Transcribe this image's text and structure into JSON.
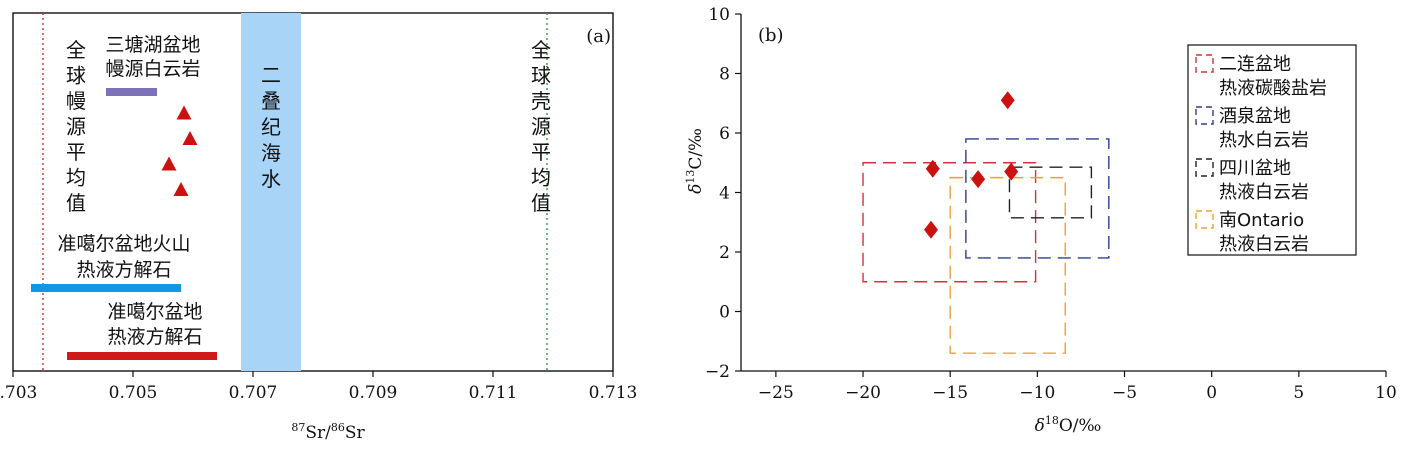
{
  "chart_data": [
    {
      "panel": "(a)",
      "type": "scatter",
      "xlabel_sup": "87",
      "xlabel_mid": "Sr/",
      "xlabel_sup2": "86",
      "xlabel_end": "Sr",
      "xlim": [
        0.703,
        0.713
      ],
      "xticks": [
        "0.703",
        "0.705",
        "0.707",
        "0.709",
        "0.711",
        "0.713"
      ],
      "reference_lines": [
        {
          "x": 0.7035,
          "color": "#d81e1e",
          "chars": [
            "全",
            "球",
            "幔",
            "源",
            "平",
            "均",
            "值"
          ]
        },
        {
          "x": 0.7119,
          "color": "#1e8f3a",
          "chars": [
            "全",
            "球",
            "壳",
            "源",
            "平",
            "均",
            "值"
          ]
        }
      ],
      "seawater_band": {
        "x0": 0.7068,
        "x1": 0.7078,
        "color": "#a8d4f8",
        "chars": [
          "二",
          "叠",
          "纪",
          "海",
          "水"
        ]
      },
      "points": [
        {
          "x": 0.70585,
          "level": 1
        },
        {
          "x": 0.70595,
          "level": 2
        },
        {
          "x": 0.7056,
          "level": 3
        },
        {
          "x": 0.7058,
          "level": 4
        }
      ],
      "ranges": [
        {
          "label1": "三塘湖盆地",
          "label2": "幔源白云岩",
          "x0": 0.70455,
          "x1": 0.7054,
          "color": "#7b72b8"
        },
        {
          "label1": "准噶尔盆地火山",
          "label2": "热液方解石",
          "x0": 0.7033,
          "x1": 0.7058,
          "color": "#1296e6"
        },
        {
          "label1": "准噶尔盆地",
          "label2": "热液方解石",
          "x0": 0.7039,
          "x1": 0.7064,
          "color": "#d01919"
        }
      ]
    },
    {
      "panel": "(b)",
      "type": "scatter",
      "xlabel_pre": "δ",
      "xlabel_sup": "18",
      "xlabel_end": "O/‰",
      "ylabel_pre": "δ",
      "ylabel_sup": "13",
      "ylabel_end": "C/‰",
      "xlim": [
        -27,
        10
      ],
      "ylim": [
        -2,
        10
      ],
      "xticks": [
        -25,
        -20,
        -15,
        -10,
        -5,
        0,
        5,
        10
      ],
      "yticks": [
        -2,
        0,
        2,
        4,
        6,
        8,
        10
      ],
      "points": [
        {
          "x": -11.7,
          "y": 7.1
        },
        {
          "x": -16.0,
          "y": 4.8
        },
        {
          "x": -13.4,
          "y": 4.45
        },
        {
          "x": -11.5,
          "y": 4.7
        },
        {
          "x": -16.1,
          "y": 2.75
        }
      ],
      "fields": [
        {
          "line1": "二连盆地",
          "line2": "热液碳酸盐岩",
          "color": "#d13438",
          "x0": -20.0,
          "x1": -10.1,
          "y0": 1.0,
          "y1": 5.0
        },
        {
          "line1": "酒泉盆地",
          "line2": "热水白云岩",
          "color": "#2e3d8f",
          "x0": -14.1,
          "x1": -5.9,
          "y0": 1.8,
          "y1": 5.8
        },
        {
          "line1": "四川盆地",
          "line2": "热液白云岩",
          "color": "#222222",
          "x0": -11.6,
          "x1": -6.9,
          "y0": 3.15,
          "y1": 4.85
        },
        {
          "line1": "南Ontario",
          "line2": "热液白云岩",
          "color": "#f0a030",
          "x0": -15.0,
          "x1": -8.4,
          "y0": -1.4,
          "y1": 4.5
        }
      ]
    }
  ]
}
